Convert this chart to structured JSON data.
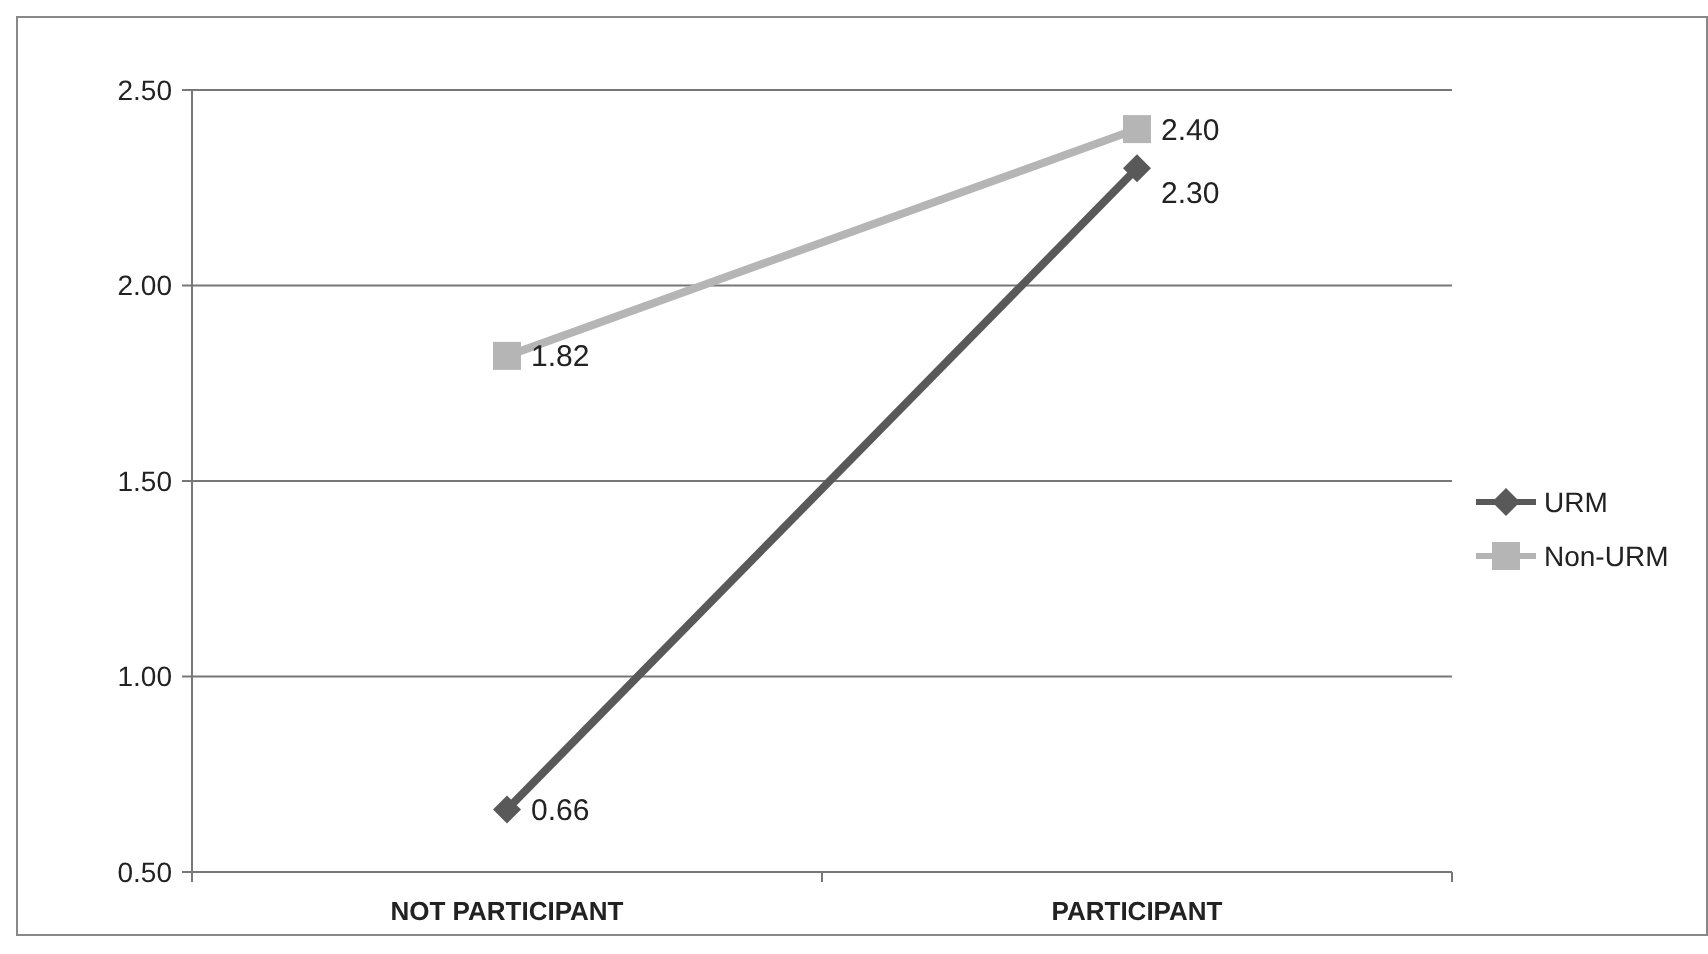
{
  "chart_data": {
    "type": "line",
    "categories": [
      "NOT PARTICIPANT",
      "PARTICIPANT"
    ],
    "series": [
      {
        "name": "URM",
        "color": "#595959",
        "marker": "diamond",
        "values": [
          0.66,
          2.3
        ],
        "value_labels": [
          "0.66",
          "2.30"
        ]
      },
      {
        "name": "Non-URM",
        "color": "#b5b5b5",
        "marker": "square",
        "values": [
          1.82,
          2.4
        ],
        "value_labels": [
          "1.82",
          "2.40"
        ]
      }
    ],
    "ylim": [
      0.5,
      2.5
    ],
    "yticks": [
      {
        "value": 0.5,
        "label": "0.50"
      },
      {
        "value": 1,
        "label": "1.00"
      },
      {
        "value": 1.5,
        "label": "1.50"
      },
      {
        "value": 2,
        "label": "2.00"
      },
      {
        "value": 2.5,
        "label": "2.50"
      }
    ],
    "grid": "y",
    "legend": "right"
  }
}
